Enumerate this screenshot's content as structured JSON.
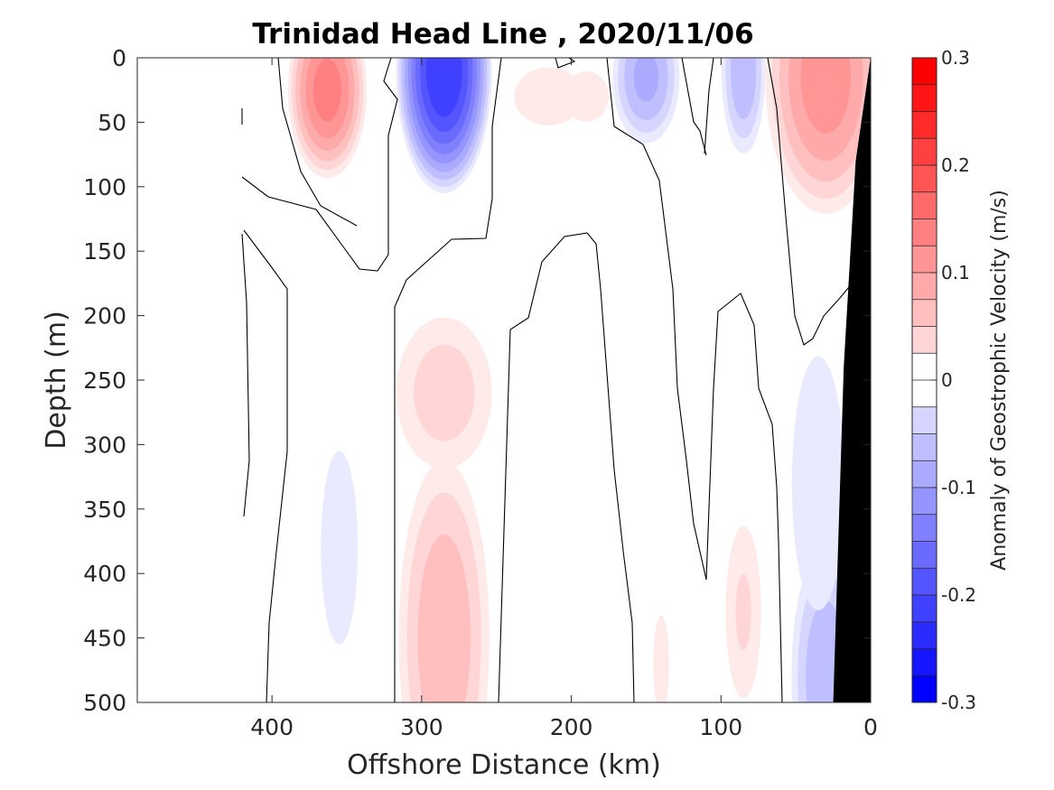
{
  "chart_data": {
    "type": "contourf",
    "title": "Trinidad Head Line , 2020/11/06",
    "xlabel": "Offshore Distance (km)",
    "ylabel": "Depth (m)",
    "xlim": [
      490,
      0
    ],
    "ylim": [
      0,
      500
    ],
    "x_reversed": true,
    "y_reversed": true,
    "x_ticks": [
      400,
      300,
      200,
      100,
      0
    ],
    "y_ticks": [
      0,
      50,
      100,
      150,
      200,
      250,
      300,
      350,
      400,
      450,
      500
    ],
    "colorbar": {
      "label": "Anomaly of Geostrophic Velocity (m/s)",
      "range": [
        -0.3,
        0.3
      ],
      "level_step": 0.025,
      "tick_values": [
        -0.3,
        -0.2,
        -0.1,
        0,
        0.1,
        0.2,
        0.3
      ],
      "tick_labels": [
        "-0.3",
        "-0.2",
        "-0.1",
        "0",
        "0.1",
        "0.2",
        "0.3"
      ],
      "negative_color": "#0000ff",
      "positive_color": "#ff0000",
      "zero_color": "#ffffff"
    },
    "grid": false,
    "bathymetry_color": "#000000",
    "velocity_cores": [
      {
        "x": 363,
        "y": 25,
        "peak": 0.15,
        "rx": 27,
        "ry": 70
      },
      {
        "x": 285,
        "y": 10,
        "peak": -0.23,
        "rx": 32,
        "ry": 95
      },
      {
        "x": 215,
        "y": 30,
        "peak": 0.04,
        "rx": 33,
        "ry": 32
      },
      {
        "x": 190,
        "y": 30,
        "peak": 0.045,
        "rx": 20,
        "ry": 26
      },
      {
        "x": 150,
        "y": 15,
        "peak": -0.1,
        "rx": 24,
        "ry": 55
      },
      {
        "x": 85,
        "y": 10,
        "peak": -0.09,
        "rx": 16,
        "ry": 70
      },
      {
        "x": 30,
        "y": 15,
        "peak": 0.13,
        "rx": 42,
        "ry": 110
      },
      {
        "x": 285,
        "y": 450,
        "peak": 0.09,
        "rx": 33,
        "ry": 150
      },
      {
        "x": 285,
        "y": 260,
        "peak": 0.06,
        "rx": 38,
        "ry": 70
      },
      {
        "x": 355,
        "y": 380,
        "peak": -0.03,
        "rx": 23,
        "ry": 140
      },
      {
        "x": 140,
        "y": 470,
        "peak": 0.03,
        "rx": 10,
        "ry": 70
      },
      {
        "x": 85,
        "y": 430,
        "peak": 0.05,
        "rx": 15,
        "ry": 85
      },
      {
        "x": 30,
        "y": 480,
        "peak": -0.09,
        "rx": 25,
        "ry": 110
      },
      {
        "x": 35,
        "y": 330,
        "peak": -0.04,
        "rx": 25,
        "ry": 140
      }
    ],
    "bathymetry": [
      {
        "x": 0,
        "depth": 0
      },
      {
        "x": 10,
        "depth": 80
      },
      {
        "x": 18,
        "depth": 240
      },
      {
        "x": 25,
        "depth": 500
      }
    ]
  }
}
